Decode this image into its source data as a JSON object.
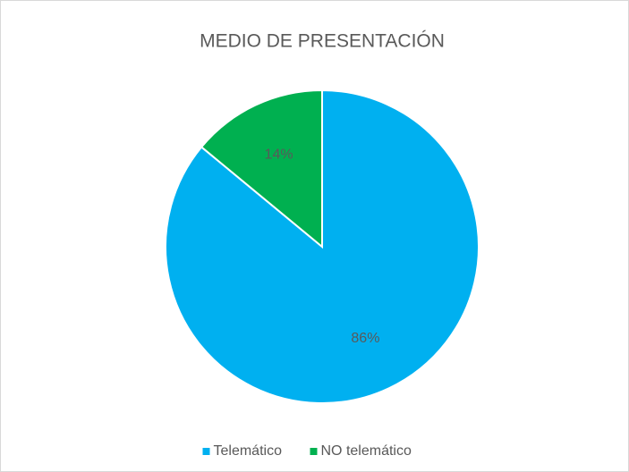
{
  "chart_data": {
    "type": "pie",
    "title": "MEDIO DE PRESENTACIÓN",
    "categories": [
      "Telemático",
      "NO telemático"
    ],
    "values": [
      86,
      14
    ],
    "value_labels": [
      "86%",
      "14%"
    ],
    "colors": [
      "#00b0f0",
      "#00b050"
    ],
    "legend": "bottom"
  }
}
